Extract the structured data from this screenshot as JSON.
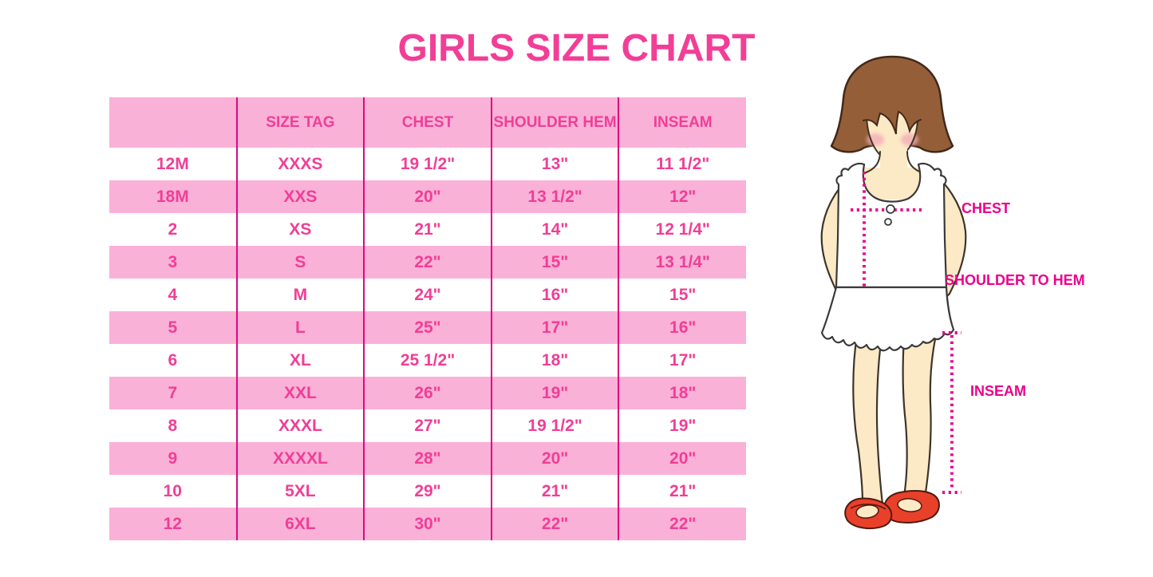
{
  "title": "GIRLS SIZE CHART",
  "chart_data": {
    "type": "table",
    "title": "GIRLS SIZE CHART",
    "columns": [
      "",
      "SIZE TAG",
      "CHEST",
      "SHOULDER HEM",
      "INSEAM"
    ],
    "rows": [
      [
        "12M",
        "XXXS",
        "19 1/2\"",
        "13\"",
        "11 1/2\""
      ],
      [
        "18M",
        "XXS",
        "20\"",
        "13 1/2\"",
        "12\""
      ],
      [
        "2",
        "XS",
        "21\"",
        "14\"",
        "12 1/4\""
      ],
      [
        "3",
        "S",
        "22\"",
        "15\"",
        "13 1/4\""
      ],
      [
        "4",
        "M",
        "24\"",
        "16\"",
        "15\""
      ],
      [
        "5",
        "L",
        "25\"",
        "17\"",
        "16\""
      ],
      [
        "6",
        "XL",
        "25 1/2\"",
        "18\"",
        "17\""
      ],
      [
        "7",
        "XXL",
        "26\"",
        "19\"",
        "18\""
      ],
      [
        "8",
        "XXXL",
        "27\"",
        "19 1/2\"",
        "19\""
      ],
      [
        "9",
        "XXXXL",
        "28\"",
        "20\"",
        "20\""
      ],
      [
        "10",
        "5XL",
        "29\"",
        "21\"",
        "21\""
      ],
      [
        "12",
        "6XL",
        "30\"",
        "22\"",
        "22\""
      ]
    ],
    "row_striping": "white/pink alternating, header pink",
    "grid": "vertical magenta rules between columns only"
  },
  "diagram": {
    "labels": {
      "chest": "CHEST",
      "shoulder_to_hem": "SHOULDER TO HEM",
      "inseam": "INSEAM"
    },
    "figure": "illustrated girl with brown bob hair, white ruffled sleeveless dress, red mary-jane shoes, pink dotted measurement lines"
  },
  "colors": {
    "title_pink": "#F23E96",
    "table_text_pink": "#F03E96",
    "row_pink": "#FAB1D8",
    "rule_magenta": "#E0067E",
    "label_magenta": "#EC008C",
    "hair_brown": "#945F38",
    "skin": "#FCE9C6",
    "shoe_red": "#E9402A",
    "dress_white": "#FFFFFF"
  }
}
